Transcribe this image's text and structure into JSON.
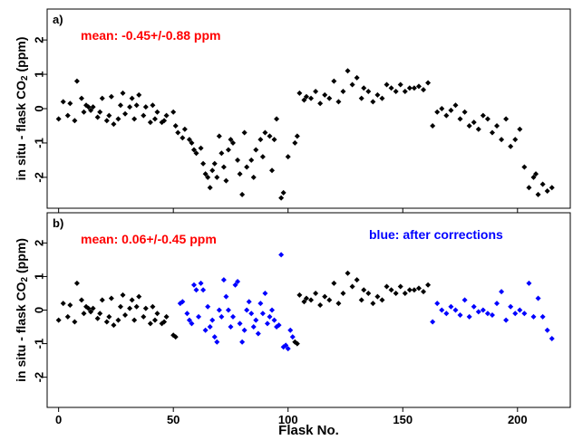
{
  "chart_data": [
    {
      "type": "scatter",
      "panel_label": "a)",
      "annotation": "mean: -0.45+/-0.88 ppm",
      "annotation_color": "#ff0000",
      "ylabel_main": "in situ - flask CO",
      "ylabel_sub": "2",
      "ylabel_unit": " (ppm)",
      "xlim": [
        -5,
        223
      ],
      "ylim": [
        -2.9,
        2.9
      ],
      "yticks": [
        -2,
        -1,
        0,
        1,
        2
      ],
      "xticks": [
        0,
        50,
        100,
        150,
        200
      ],
      "series": [
        {
          "color": "#000000",
          "x": [
            0,
            2,
            4,
            5,
            7,
            8,
            10,
            11,
            12,
            13,
            14,
            15,
            17,
            18,
            19,
            21,
            22,
            23,
            24,
            26,
            27,
            28,
            29,
            31,
            32,
            33,
            34,
            35,
            37,
            38,
            40,
            41,
            42,
            43,
            45,
            46,
            47,
            50,
            51,
            52,
            54,
            55,
            57,
            58,
            59,
            60,
            62,
            63,
            64,
            65,
            66,
            67,
            68,
            69,
            70,
            71,
            72,
            73,
            74,
            75,
            76,
            78,
            79,
            80,
            81,
            82,
            84,
            85,
            86,
            88,
            89,
            90,
            92,
            93,
            94,
            95,
            97,
            98,
            100,
            103,
            104,
            105,
            107,
            108,
            110,
            112,
            114,
            116,
            118,
            120,
            122,
            124,
            126,
            128,
            130,
            132,
            133,
            135,
            137,
            139,
            141,
            143,
            145,
            147,
            149,
            151,
            153,
            155,
            157,
            159,
            161,
            163,
            165,
            167,
            169,
            171,
            173,
            175,
            177,
            179,
            181,
            183,
            185,
            187,
            189,
            191,
            193,
            195,
            197,
            199,
            201,
            203,
            205,
            207,
            208,
            209,
            211,
            213,
            215
          ],
          "y": [
            -0.3,
            0.2,
            -0.2,
            0.15,
            -0.35,
            0.8,
            0.3,
            -0.1,
            0.1,
            0.05,
            -0.05,
            0.05,
            -0.25,
            -0.1,
            0.3,
            -0.35,
            -0.2,
            0.35,
            -0.45,
            -0.3,
            0.1,
            0.45,
            -0.15,
            0.05,
            0.3,
            -0.3,
            0.1,
            0.4,
            -0.2,
            0.05,
            -0.4,
            0.1,
            -0.3,
            -0.1,
            -0.4,
            -0.35,
            -0.2,
            -0.1,
            -0.5,
            -0.7,
            -0.85,
            -0.6,
            -0.9,
            -1.0,
            -1.2,
            -1.3,
            -1.15,
            -1.6,
            -1.9,
            -2.0,
            -2.3,
            -1.8,
            -1.6,
            -2.0,
            -0.8,
            -1.3,
            -1.7,
            -2.1,
            -1.2,
            -0.9,
            -1.0,
            -1.5,
            -1.9,
            -2.5,
            -0.7,
            -1.7,
            -1.5,
            -2.0,
            -1.2,
            -0.9,
            -1.4,
            -0.7,
            -0.8,
            -1.8,
            -0.9,
            -0.3,
            -2.6,
            -2.45,
            -1.4,
            -1.0,
            -0.8,
            0.45,
            0.25,
            0.35,
            0.3,
            0.5,
            0.15,
            0.4,
            0.3,
            0.8,
            0.2,
            0.5,
            1.1,
            0.7,
            0.9,
            0.3,
            0.6,
            0.5,
            0.2,
            0.4,
            0.3,
            0.7,
            0.6,
            0.5,
            0.7,
            0.5,
            0.6,
            0.6,
            0.65,
            0.55,
            0.75,
            -0.5,
            -0.1,
            0.0,
            -0.2,
            -0.05,
            0.1,
            -0.3,
            -0.1,
            -0.5,
            -0.4,
            -0.6,
            -0.2,
            -0.3,
            -0.7,
            -0.5,
            -0.9,
            -0.3,
            -1.1,
            -0.9,
            -0.6,
            -1.7,
            -2.3,
            -2.0,
            -1.9,
            -2.5,
            -2.2,
            -2.4,
            -2.3
          ]
        }
      ]
    },
    {
      "type": "scatter",
      "panel_label": "b)",
      "annotation": "mean: 0.06+/-0.45 ppm",
      "annotation_color": "#ff0000",
      "annotation2": "blue: after corrections",
      "annotation2_color": "#0000ff",
      "ylabel_main": "in situ - flask CO",
      "ylabel_sub": "2",
      "ylabel_unit": " (ppm)",
      "xlabel": "Flask No.",
      "xlim": [
        -5,
        223
      ],
      "ylim": [
        -2.9,
        2.9
      ],
      "yticks": [
        -2,
        -1,
        0,
        1,
        2
      ],
      "xticks": [
        0,
        50,
        100,
        150,
        200
      ],
      "series": [
        {
          "color": "#000000",
          "x": [
            0,
            2,
            4,
            5,
            7,
            8,
            10,
            11,
            12,
            13,
            14,
            15,
            17,
            18,
            19,
            21,
            22,
            23,
            24,
            26,
            27,
            28,
            29,
            31,
            32,
            33,
            34,
            35,
            37,
            38,
            40,
            41,
            42,
            43,
            45,
            46,
            47,
            50,
            51,
            103,
            104,
            105,
            107,
            108,
            110,
            112,
            114,
            116,
            118,
            120,
            122,
            124,
            126,
            128,
            130,
            132,
            133,
            135,
            137,
            139,
            141,
            143,
            145,
            147,
            149,
            151,
            153,
            155,
            157,
            159,
            161
          ],
          "y": [
            -0.3,
            0.2,
            -0.2,
            0.15,
            -0.35,
            0.8,
            0.3,
            -0.1,
            0.1,
            0.05,
            -0.05,
            0.05,
            -0.25,
            -0.1,
            0.3,
            -0.35,
            -0.2,
            0.35,
            -0.45,
            -0.3,
            0.1,
            0.45,
            -0.15,
            0.05,
            0.3,
            -0.3,
            0.1,
            0.4,
            -0.2,
            0.05,
            -0.4,
            0.1,
            -0.3,
            -0.1,
            -0.4,
            -0.35,
            -0.2,
            -0.75,
            -0.8,
            -0.95,
            -1.0,
            0.45,
            0.25,
            0.35,
            0.3,
            0.5,
            0.15,
            0.4,
            0.3,
            0.8,
            0.2,
            0.5,
            1.1,
            0.7,
            0.9,
            0.3,
            0.6,
            0.5,
            0.2,
            0.4,
            0.3,
            0.7,
            0.6,
            0.5,
            0.7,
            0.5,
            0.6,
            0.6,
            0.65,
            0.55,
            0.75
          ]
        },
        {
          "color": "#0000ff",
          "x": [
            53,
            54,
            56,
            57,
            58,
            59,
            60,
            61,
            62,
            63,
            64,
            65,
            66,
            67,
            68,
            69,
            70,
            71,
            72,
            73,
            74,
            75,
            76,
            77,
            78,
            79,
            80,
            81,
            82,
            83,
            84,
            85,
            86,
            87,
            88,
            89,
            90,
            91,
            92,
            93,
            94,
            95,
            96,
            97,
            98,
            99,
            100,
            101,
            102,
            163,
            165,
            167,
            169,
            171,
            173,
            175,
            177,
            179,
            181,
            183,
            185,
            187,
            189,
            191,
            193,
            195,
            197,
            199,
            201,
            203,
            205,
            207,
            209,
            211,
            213,
            215
          ],
          "y": [
            0.2,
            0.25,
            -0.1,
            -0.3,
            -0.4,
            0.75,
            0.6,
            -0.2,
            0.8,
            0.6,
            -0.6,
            0.1,
            -0.5,
            -0.3,
            -0.8,
            -0.95,
            0.0,
            -0.2,
            0.9,
            0.4,
            0.0,
            -0.5,
            -0.2,
            0.75,
            0.85,
            -0.4,
            -0.95,
            -0.6,
            0.0,
            0.25,
            -0.1,
            -0.5,
            -0.3,
            -0.7,
            0.2,
            -0.1,
            0.5,
            -0.4,
            -0.2,
            0.0,
            -0.3,
            -0.5,
            -0.45,
            1.65,
            -1.1,
            -1.05,
            -1.15,
            -0.6,
            -0.8,
            -0.35,
            0.2,
            0.0,
            -0.1,
            0.1,
            0.0,
            -0.15,
            0.3,
            -0.2,
            0.1,
            -0.05,
            0.0,
            -0.1,
            -0.15,
            0.2,
            0.55,
            -0.3,
            0.1,
            -0.1,
            0.0,
            -0.1,
            0.8,
            -0.2,
            0.35,
            -0.2,
            -0.6,
            -0.85
          ]
        }
      ]
    }
  ]
}
